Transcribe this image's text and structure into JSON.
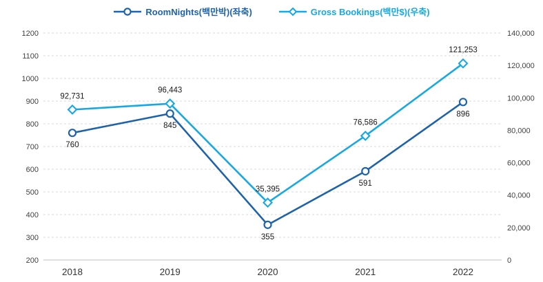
{
  "legend": {
    "items": [
      {
        "label": "RoomNights(백만박)(좌축)",
        "marker": "circle",
        "color": "#1E62A9"
      },
      {
        "label": "Gross Bookings(백만$)(우축)",
        "marker": "diamond",
        "color": "#17A8E3"
      }
    ]
  },
  "chart_data": {
    "type": "line",
    "title": "",
    "categories": [
      "2018",
      "2019",
      "2020",
      "2021",
      "2022"
    ],
    "series": [
      {
        "name": "RoomNights(백만박)(좌축)",
        "axis": "left",
        "color": "#1E62A9",
        "marker": "circle",
        "values": [
          760,
          845,
          355,
          591,
          896
        ],
        "labels": [
          "760",
          "845",
          "355",
          "591",
          "896"
        ],
        "label_position": "below"
      },
      {
        "name": "Gross Bookings(백만$)(우축)",
        "axis": "right",
        "color": "#17A8E3",
        "marker": "diamond",
        "values": [
          92731,
          96443,
          35395,
          76586,
          121253
        ],
        "labels": [
          "92,731",
          "96,443",
          "35,395",
          "76,586",
          "121,253"
        ],
        "label_position": "above"
      }
    ],
    "left_axis": {
      "min": 200,
      "max": 1200,
      "step": 100,
      "ticks": [
        "200",
        "300",
        "400",
        "500",
        "600",
        "700",
        "800",
        "900",
        "1000",
        "1100",
        "1200"
      ]
    },
    "right_axis": {
      "min": 0,
      "max": 140000,
      "step": 20000,
      "ticks": [
        "0",
        "20,000",
        "40,000",
        "60,000",
        "80,000",
        "100,000",
        "120,000",
        "140,000"
      ]
    },
    "grid": "horizontal-dashed",
    "legend_position": "top-center",
    "colors": {
      "gridline": "#D9D9D9",
      "axis_line": "#BFBFBF",
      "tick_text": "#404040",
      "label_text": "#1A1A1A",
      "marker_fill": "#FFFFFF"
    }
  }
}
